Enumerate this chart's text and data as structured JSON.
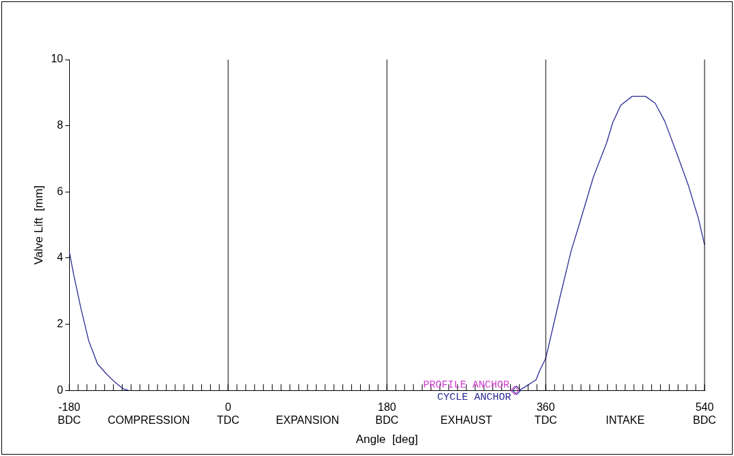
{
  "chart_data": {
    "type": "line",
    "xlabel": "Angle  [deg]",
    "ylabel": "Valve Lift  [mm]",
    "xlim": [
      -180,
      540
    ],
    "ylim": [
      0,
      10
    ],
    "yticks": [
      0,
      2,
      4,
      6,
      8,
      10
    ],
    "xticks": [
      {
        "value": -180,
        "label": "-180\nBDC"
      },
      {
        "value": -170,
        "label": null
      },
      {
        "value": -160,
        "label": null
      },
      {
        "value": -150,
        "label": null
      },
      {
        "value": -140,
        "label": null
      },
      {
        "value": -130,
        "label": null
      },
      {
        "value": -120,
        "label": null
      },
      {
        "value": -110,
        "label": null
      },
      {
        "value": -100,
        "label": null
      },
      {
        "value": -90,
        "label": "\nCOMPRESSION"
      },
      {
        "value": -80,
        "label": null
      },
      {
        "value": -70,
        "label": null
      },
      {
        "value": -60,
        "label": null
      },
      {
        "value": -50,
        "label": null
      },
      {
        "value": -40,
        "label": null
      },
      {
        "value": -30,
        "label": null
      },
      {
        "value": -20,
        "label": null
      },
      {
        "value": -10,
        "label": null
      },
      {
        "value": 0,
        "label": "0\nTDC"
      },
      {
        "value": 10,
        "label": null
      },
      {
        "value": 20,
        "label": null
      },
      {
        "value": 30,
        "label": null
      },
      {
        "value": 40,
        "label": null
      },
      {
        "value": 50,
        "label": null
      },
      {
        "value": 60,
        "label": null
      },
      {
        "value": 70,
        "label": null
      },
      {
        "value": 80,
        "label": null
      },
      {
        "value": 90,
        "label": "\nEXPANSION"
      },
      {
        "value": 100,
        "label": null
      },
      {
        "value": 110,
        "label": null
      },
      {
        "value": 120,
        "label": null
      },
      {
        "value": 130,
        "label": null
      },
      {
        "value": 140,
        "label": null
      },
      {
        "value": 150,
        "label": null
      },
      {
        "value": 160,
        "label": null
      },
      {
        "value": 170,
        "label": null
      },
      {
        "value": 180,
        "label": "180\nBDC"
      },
      {
        "value": 190,
        "label": null
      },
      {
        "value": 200,
        "label": null
      },
      {
        "value": 210,
        "label": null
      },
      {
        "value": 220,
        "label": null
      },
      {
        "value": 230,
        "label": null
      },
      {
        "value": 240,
        "label": null
      },
      {
        "value": 250,
        "label": null
      },
      {
        "value": 260,
        "label": null
      },
      {
        "value": 270,
        "label": "\nEXHAUST"
      },
      {
        "value": 280,
        "label": null
      },
      {
        "value": 290,
        "label": null
      },
      {
        "value": 300,
        "label": null
      },
      {
        "value": 310,
        "label": null
      },
      {
        "value": 320,
        "label": null
      },
      {
        "value": 330,
        "label": null
      },
      {
        "value": 340,
        "label": null
      },
      {
        "value": 350,
        "label": null
      },
      {
        "value": 360,
        "label": "360\nTDC"
      },
      {
        "value": 370,
        "label": null
      },
      {
        "value": 380,
        "label": null
      },
      {
        "value": 390,
        "label": null
      },
      {
        "value": 400,
        "label": null
      },
      {
        "value": 410,
        "label": null
      },
      {
        "value": 420,
        "label": null
      },
      {
        "value": 430,
        "label": null
      },
      {
        "value": 440,
        "label": null
      },
      {
        "value": 450,
        "label": "\nINTAKE"
      },
      {
        "value": 460,
        "label": null
      },
      {
        "value": 470,
        "label": null
      },
      {
        "value": 480,
        "label": null
      },
      {
        "value": 490,
        "label": null
      },
      {
        "value": 500,
        "label": null
      },
      {
        "value": 510,
        "label": null
      },
      {
        "value": 520,
        "label": null
      },
      {
        "value": 530,
        "label": null
      },
      {
        "value": 540,
        "label": "540\nBDC"
      }
    ],
    "ref_lines": [
      {
        "axis": "x",
        "value": 0,
        "label": null,
        "color": "#000000"
      },
      {
        "axis": "x",
        "value": 180,
        "label": null,
        "color": "#000000"
      },
      {
        "axis": "x",
        "value": 360,
        "label": null,
        "color": "#000000"
      }
    ],
    "grid": false,
    "legend": false,
    "marker": "none",
    "line_style": "solid",
    "series": [
      {
        "color": "#2b2b96",
        "x": [
          -180,
          -175,
          -167,
          -158,
          -148,
          -138,
          -128,
          -119,
          -113
        ],
        "values": [
          4.2,
          3.5,
          2.5,
          1.5,
          0.8,
          0.5,
          0.24,
          0.05,
          0
        ]
      },
      {
        "color": "#2b2b96",
        "x": [
          330,
          335,
          349,
          353,
          360,
          376.5,
          389,
          397,
          414,
          429,
          436,
          445,
          458,
          473,
          484,
          495,
          509,
          522,
          533,
          540
        ],
        "values": [
          0,
          0.08,
          0.32,
          0.59,
          0.97,
          2.86,
          4.24,
          4.93,
          6.45,
          7.48,
          8.1,
          8.62,
          8.89,
          8.89,
          8.68,
          8.13,
          7.13,
          6.17,
          5.2,
          4.4
        ]
      },
      {
        "type": "scatter",
        "name": "PROFILE ANCHOR",
        "color": "#d23cd2",
        "marker": "diamond",
        "x": [
          325
        ],
        "values": [
          0
        ]
      },
      {
        "type": "scatter",
        "name": "CYCLE ANCHOR",
        "color": "#2b2b96",
        "marker": "diamond",
        "x": [
          327
        ],
        "values": [
          0
        ]
      }
    ]
  }
}
